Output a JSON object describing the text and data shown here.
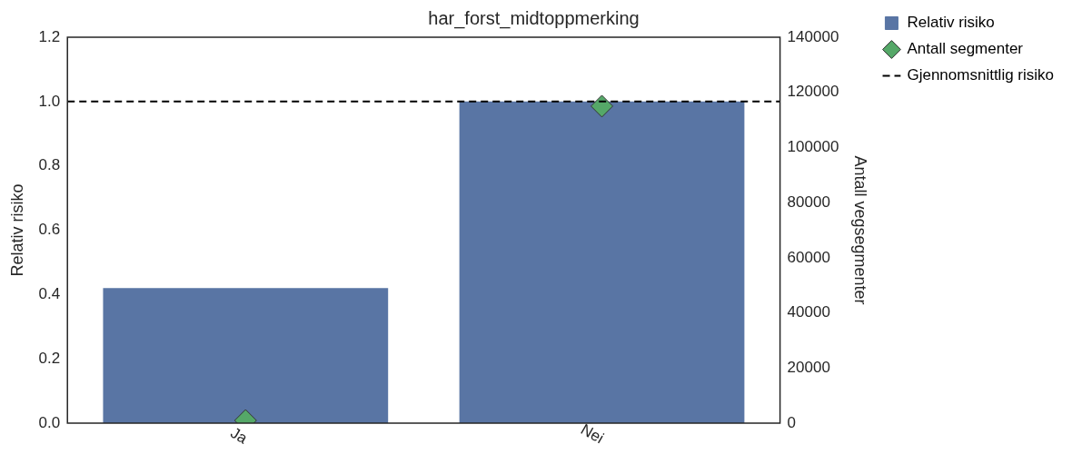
{
  "chart_data": {
    "type": "bar",
    "title": "har_forst_midtoppmerking",
    "ylabel": "Relativ risiko",
    "y2label": "Antall vegsegmenter",
    "categories": [
      "Ja",
      "Nei"
    ],
    "series": [
      {
        "name": "Relativ risiko",
        "color": "#5975a4",
        "values": [
          0.42,
          1.0
        ]
      },
      {
        "name": "Antall segmenter",
        "type": "scatter",
        "axis": "y2",
        "color": "#55a868",
        "values": [
          1000,
          115000
        ]
      }
    ],
    "marker": "diamond",
    "ylim": [
      0,
      1.2
    ],
    "yticks": [
      {
        "value": 0,
        "label": "0.0"
      },
      0.2,
      0.4,
      0.6,
      0.8,
      {
        "value": 1,
        "label": "1.0"
      },
      1.2
    ],
    "y2lim": [
      0,
      140000
    ],
    "y2ticks": [
      0,
      20000,
      40000,
      60000,
      80000,
      100000,
      120000,
      140000
    ],
    "ref_lines": [
      {
        "axis": "y",
        "value": 1.0,
        "label": "Gjennomsnittlig risiko",
        "color": "#000000",
        "line_style": "dashed"
      }
    ],
    "legend": "right",
    "grid": false
  }
}
